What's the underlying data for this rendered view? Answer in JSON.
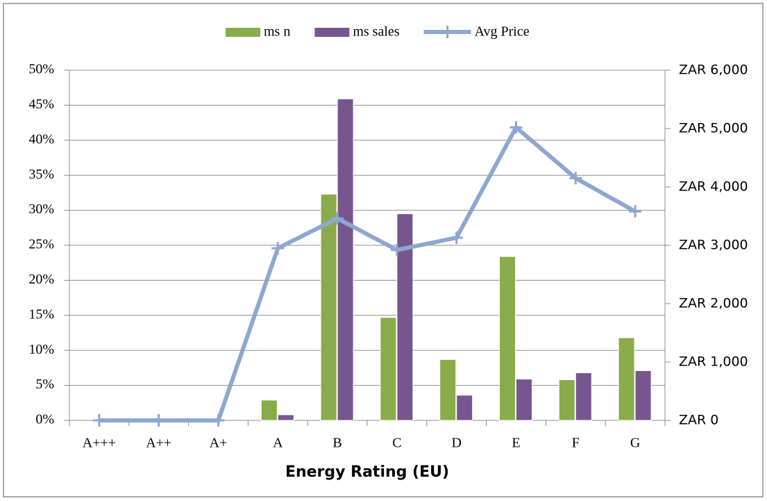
{
  "chart_data": {
    "type": "bar_line",
    "categories": [
      "A+++",
      "A++",
      "A+",
      "A",
      "B",
      "C",
      "D",
      "E",
      "F",
      "G"
    ],
    "xlabel": "Energy Rating (EU)",
    "series": [
      {
        "name": "ms n",
        "color": "#8aab4a",
        "values": [
          0,
          0,
          0,
          2.9,
          32.3,
          14.7,
          8.7,
          23.4,
          5.8,
          11.8
        ]
      },
      {
        "name": "ms sales",
        "color": "#77568f",
        "values": [
          0,
          0,
          0,
          0.8,
          45.9,
          29.5,
          3.6,
          5.9,
          6.8,
          7.1
        ]
      },
      {
        "name": "Avg Price",
        "color": "#8ea7d0",
        "type": "line",
        "axis": "y2",
        "values": [
          0,
          0,
          0,
          2950,
          3460,
          2920,
          3130,
          5020,
          4150,
          3580
        ]
      }
    ],
    "ylim": [
      0,
      50
    ],
    "yticks": [
      {
        "value": 0,
        "label": "0%"
      },
      {
        "value": 5,
        "label": "5%"
      },
      {
        "value": 10,
        "label": "10%"
      },
      {
        "value": 15,
        "label": "15%"
      },
      {
        "value": 20,
        "label": "20%"
      },
      {
        "value": 25,
        "label": "25%"
      },
      {
        "value": 30,
        "label": "30%"
      },
      {
        "value": 35,
        "label": "35%"
      },
      {
        "value": 40,
        "label": "40%"
      },
      {
        "value": 45,
        "label": "45%"
      },
      {
        "value": 50,
        "label": "50%"
      }
    ],
    "y2lim": [
      0,
      6000
    ],
    "y2ticks": [
      {
        "value": 0,
        "label": "ZAR 0"
      },
      {
        "value": 1000,
        "label": "ZAR 1,000"
      },
      {
        "value": 2000,
        "label": "ZAR 2,000"
      },
      {
        "value": 3000,
        "label": "ZAR 3,000"
      },
      {
        "value": 4000,
        "label": "ZAR 4,000"
      },
      {
        "value": 5000,
        "label": "ZAR 5,000"
      },
      {
        "value": 6000,
        "label": "ZAR 6,000"
      }
    ],
    "grid": true,
    "legend": "top"
  }
}
